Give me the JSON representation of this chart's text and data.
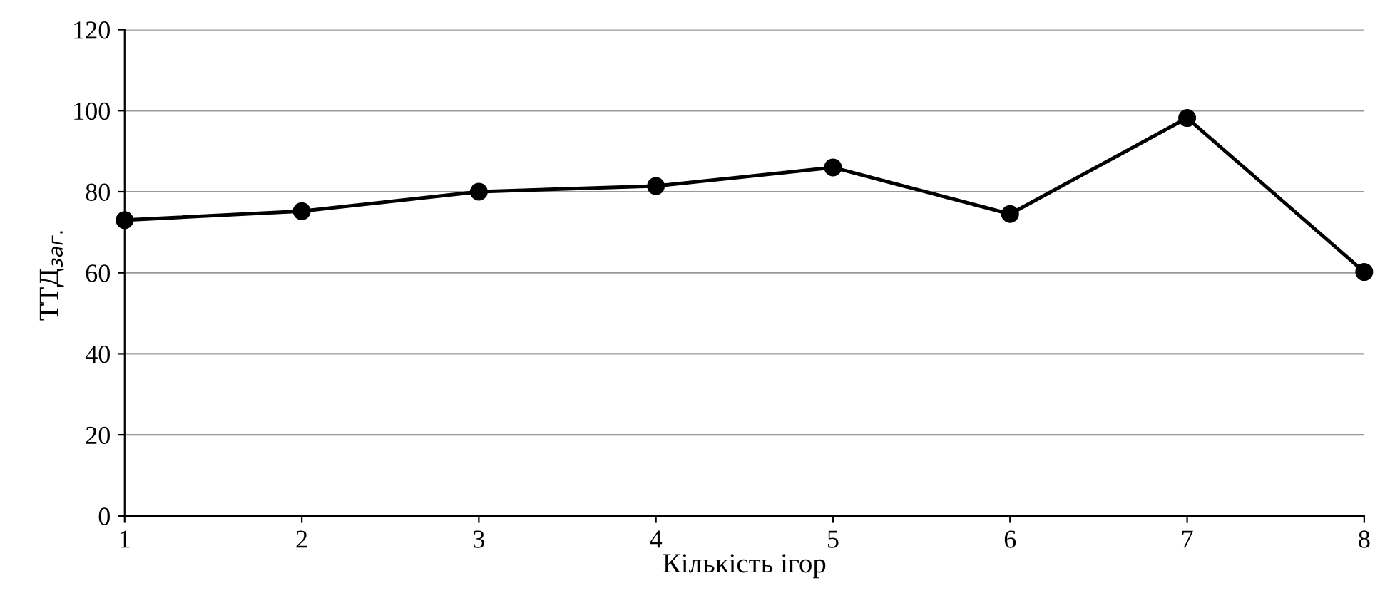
{
  "chart_data": {
    "type": "line",
    "xlabel": "Кількість ігор",
    "ylabel": "ТТД$_{заг.}$",
    "x": [
      1,
      2,
      3,
      4,
      5,
      6,
      7,
      8
    ],
    "series": [
      {
        "color": "#000000",
        "values": [
          73,
          75.2,
          80,
          81.4,
          86,
          74.5,
          98.2,
          60.2
        ]
      }
    ],
    "xlim": [
      1,
      8
    ],
    "xticks": [
      1,
      2,
      3,
      4,
      5,
      6,
      7,
      8
    ],
    "ylim": [
      0,
      120
    ],
    "yticks": [
      0,
      20,
      40,
      60,
      80,
      100,
      120
    ],
    "grid": "y",
    "marker": "circle",
    "line_style": "solid",
    "legend": false
  }
}
